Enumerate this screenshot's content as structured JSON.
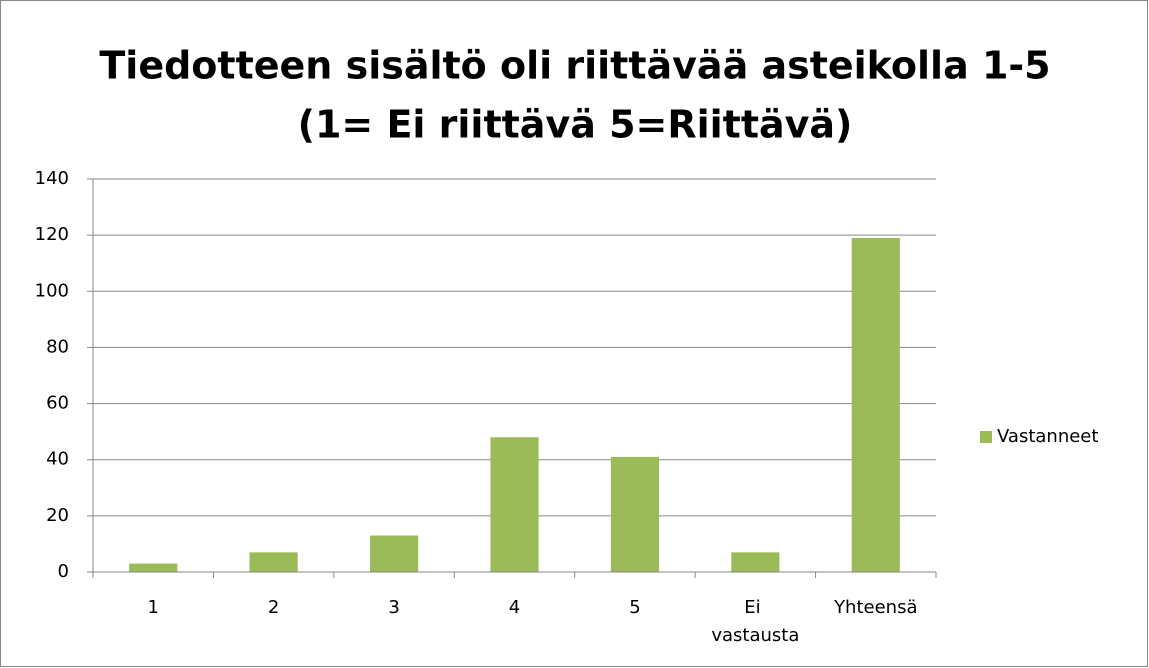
{
  "chart_data": {
    "type": "bar",
    "title": [
      "Tiedotteen sisältö oli riittävää asteikolla 1-5",
      "(1= Ei riittävä 5=Riittävä)"
    ],
    "categories": [
      "1",
      "2",
      "3",
      "4",
      "5",
      "Ei vastausta",
      "Yhteensä"
    ],
    "series": [
      {
        "name": "Vastanneet",
        "color": "#9bbb59",
        "values": [
          3,
          7,
          13,
          48,
          41,
          7,
          119
        ]
      }
    ],
    "ylim": [
      0,
      140
    ],
    "yticks": [
      0,
      20,
      40,
      60,
      80,
      100,
      120,
      140
    ],
    "grid": true,
    "legend": "right"
  }
}
